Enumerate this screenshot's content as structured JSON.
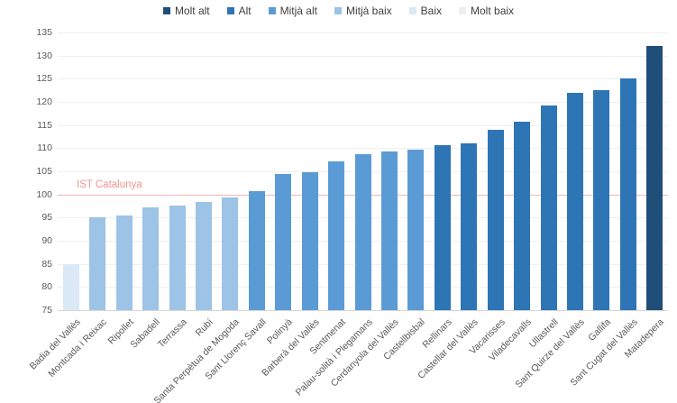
{
  "legend": {
    "items": [
      {
        "label": "Molt alt",
        "color": "#1f4e79"
      },
      {
        "label": "Alt",
        "color": "#2e75b6"
      },
      {
        "label": "Mitjà alt",
        "color": "#5b9bd5"
      },
      {
        "label": "Mitjà baix",
        "color": "#9dc3e6"
      },
      {
        "label": "Baix",
        "color": "#dbe8f6"
      },
      {
        "label": "Molt baix",
        "color": "#edf0f3"
      }
    ]
  },
  "chart_data": {
    "type": "bar",
    "title": "",
    "xlabel": "",
    "ylabel": "",
    "ylim": [
      75,
      135
    ],
    "ytick_step": 5,
    "grid": true,
    "legend_position": "top",
    "categories": [
      "Badia del Vallès",
      "Montcada i Reixac",
      "Ripollet",
      "Sabadell",
      "Terrassa",
      "Rubí",
      "Santa Perpètua de Mogoda",
      "Sant Llorenç Savall",
      "Polinyà",
      "Barberà del Vallès",
      "Sentmenat",
      "Palau-solità i Plegamans",
      "Cerdanyola del Vallès",
      "Castellbisbal",
      "Rellinars",
      "Castellar del Vallès",
      "Vacarisses",
      "Viladecavalls",
      "Ullastrell",
      "Sant Quirze del Vallès",
      "Gallifa",
      "Sant Cugat del Vallès",
      "Matadepera"
    ],
    "values": [
      85,
      95,
      95.5,
      97.3,
      97.7,
      98.4,
      99.3,
      100.8,
      104.4,
      104.9,
      107.2,
      108.8,
      109.3,
      109.6,
      110.7,
      111,
      114,
      115.7,
      119.3,
      121.9,
      122.5,
      125.1,
      132
    ],
    "bar_levels": [
      "Baix",
      "Mitjà baix",
      "Mitjà baix",
      "Mitjà baix",
      "Mitjà baix",
      "Mitjà baix",
      "Mitjà baix",
      "Mitjà alt",
      "Mitjà alt",
      "Mitjà alt",
      "Mitjà alt",
      "Mitjà alt",
      "Mitjà alt",
      "Mitjà alt",
      "Alt",
      "Alt",
      "Alt",
      "Alt",
      "Alt",
      "Alt",
      "Alt",
      "Alt",
      "Molt alt"
    ],
    "level_colors": {
      "Molt alt": "#1f4e79",
      "Alt": "#2e75b6",
      "Mitjà alt": "#5b9bd5",
      "Mitjà baix": "#9dc3e6",
      "Baix": "#dbe8f6",
      "Molt baix": "#edf0f3"
    },
    "reference_line": {
      "value": 100,
      "label": "IST Catalunya",
      "line_color": "#f5b7b1",
      "label_color": "#f0938c"
    }
  }
}
